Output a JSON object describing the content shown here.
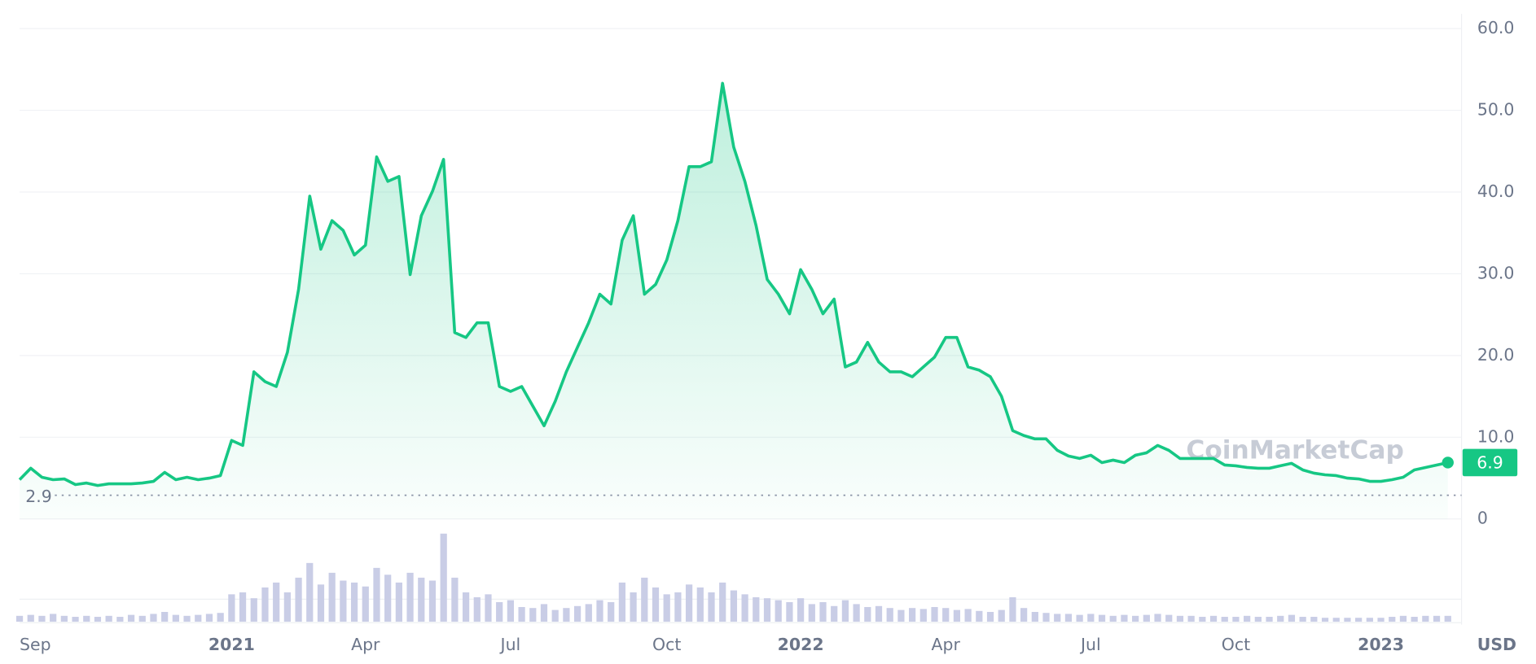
{
  "chart_data": {
    "type": "line",
    "categories": [
      null,
      "Sep",
      null,
      null,
      null,
      null,
      null,
      null,
      null,
      null,
      null,
      null,
      null,
      null,
      null,
      null,
      null,
      null,
      null,
      "2021",
      null,
      null,
      null,
      null,
      null,
      null,
      null,
      null,
      null,
      null,
      null,
      "Apr",
      null,
      null,
      null,
      null,
      null,
      null,
      null,
      null,
      null,
      null,
      null,
      null,
      "Jul",
      null,
      null,
      null,
      null,
      null,
      null,
      null,
      null,
      null,
      null,
      null,
      null,
      null,
      "Oct",
      null,
      null,
      null,
      null,
      null,
      null,
      null,
      null,
      null,
      null,
      null,
      "2022",
      null,
      null,
      null,
      null,
      null,
      null,
      null,
      null,
      null,
      null,
      null,
      null,
      "Apr",
      null,
      null,
      null,
      null,
      null,
      null,
      null,
      null,
      null,
      null,
      null,
      null,
      "Jul",
      null,
      null,
      null,
      null,
      null,
      null,
      null,
      null,
      null,
      null,
      null,
      null,
      "Oct",
      null,
      null,
      null,
      null,
      null,
      null,
      null,
      null,
      null,
      null,
      null,
      null,
      "2023",
      null,
      null,
      null,
      null,
      null,
      null
    ],
    "series": [
      {
        "name": "Price",
        "color": "#16c784",
        "values": [
          4.8,
          6.2,
          5.1,
          4.8,
          4.9,
          4.2,
          4.4,
          4.1,
          4.3,
          4.3,
          4.3,
          4.4,
          4.6,
          5.7,
          4.8,
          5.1,
          4.8,
          5.0,
          5.3,
          9.6,
          9.0,
          18.0,
          16.8,
          16.2,
          20.4,
          28.1,
          39.5,
          33.0,
          36.5,
          35.3,
          32.3,
          33.5,
          44.3,
          41.3,
          41.9,
          29.9,
          37.1,
          40.1,
          44.0,
          22.8,
          22.2,
          24.0,
          24.0,
          16.2,
          15.6,
          16.2,
          13.8,
          11.4,
          14.4,
          18.0,
          21.0,
          24.0,
          27.5,
          26.3,
          34.1,
          37.1,
          27.5,
          28.7,
          31.7,
          36.5,
          43.1,
          43.1,
          43.7,
          53.3,
          45.5,
          41.3,
          35.9,
          29.3,
          27.5,
          25.1,
          30.5,
          28.1,
          25.1,
          26.9,
          18.6,
          19.2,
          21.6,
          19.2,
          18.0,
          18.0,
          17.4,
          18.6,
          19.8,
          22.2,
          22.2,
          18.6,
          18.2,
          17.4,
          15.0,
          10.8,
          10.2,
          9.8,
          9.8,
          8.4,
          7.7,
          7.4,
          7.8,
          6.9,
          7.2,
          6.9,
          7.8,
          8.1,
          9.0,
          8.4,
          7.4,
          7.4,
          7.4,
          7.4,
          6.6,
          6.5,
          6.3,
          6.2,
          6.2,
          6.5,
          6.8,
          6.0,
          5.6,
          5.4,
          5.3,
          5.0,
          4.9,
          4.6,
          4.6,
          4.8,
          5.1,
          6.0,
          6.3,
          6.6,
          6.9
        ]
      },
      {
        "name": "Volume",
        "color": "#c9cde6",
        "values": [
          6,
          7,
          6,
          8,
          6,
          5,
          6,
          5,
          6,
          5,
          7,
          6,
          8,
          10,
          7,
          6,
          7,
          8,
          9,
          28,
          30,
          24,
          35,
          40,
          30,
          45,
          60,
          38,
          50,
          42,
          40,
          36,
          55,
          48,
          40,
          50,
          45,
          42,
          90,
          45,
          30,
          25,
          28,
          20,
          22,
          15,
          14,
          18,
          12,
          14,
          16,
          18,
          22,
          20,
          40,
          30,
          45,
          35,
          28,
          30,
          38,
          35,
          30,
          40,
          32,
          28,
          25,
          24,
          22,
          20,
          24,
          18,
          20,
          16,
          22,
          18,
          15,
          16,
          14,
          12,
          14,
          13,
          15,
          14,
          12,
          13,
          11,
          10,
          12,
          25,
          14,
          10,
          9,
          8,
          8,
          7,
          8,
          7,
          6,
          7,
          6,
          7,
          8,
          7,
          6,
          6,
          5,
          6,
          5,
          5,
          6,
          5,
          5,
          6,
          7,
          5,
          5,
          4,
          4,
          4,
          4,
          4,
          4,
          5,
          6,
          5,
          6,
          6,
          6
        ]
      }
    ],
    "ylim": [
      0,
      60
    ],
    "yticks": [
      0,
      {
        "value": 10,
        "label": "10.0"
      },
      {
        "value": 20,
        "label": "20.0"
      },
      {
        "value": 30,
        "label": "30.0"
      },
      {
        "value": 40,
        "label": "40.0"
      },
      {
        "value": 50,
        "label": "50.0"
      },
      {
        "value": 60,
        "label": "60.0"
      }
    ],
    "grid": true,
    "low_line": {
      "value": 2.9,
      "label": "2.9"
    },
    "last_price": {
      "value": 6.9,
      "label": "6.9"
    },
    "currency": "USD",
    "watermark": "CoinMarketCap"
  }
}
